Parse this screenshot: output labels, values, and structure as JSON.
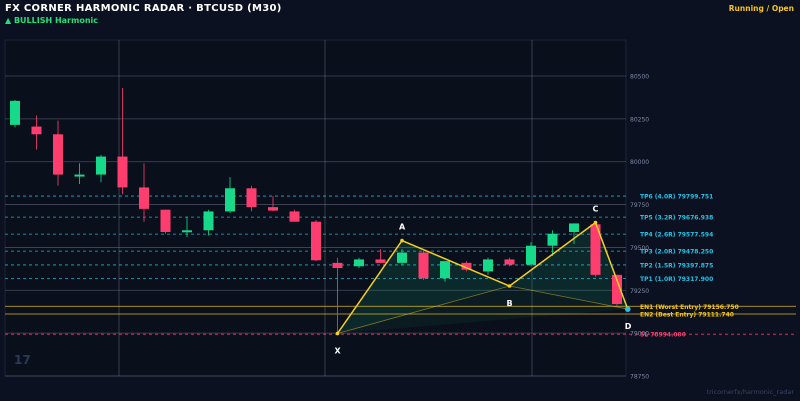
{
  "header": {
    "title": "FX CORNER HARMONIC RADAR  ·  BTCUSD (M30)",
    "pattern_label": "▲ BULLISH  Harmonic",
    "status": "Running / Open"
  },
  "watermark": "17",
  "credit": "tricornerfx/harmonic_radar",
  "colors": {
    "background": "#0b1120",
    "bull_candle": "#16d98a",
    "bear_candle": "#ff3d6e",
    "pattern_line": "#f5d020",
    "tp_line": "#22c3e6",
    "entry_line": "#f5c518",
    "sl_line": "#ff3d6e",
    "grid": "#8a93a8"
  },
  "chart_data": {
    "type": "candlestick",
    "title": "",
    "xlabel": "",
    "ylabel": "",
    "ylim": [
      78750,
      80700
    ],
    "y_ticks": [
      78750,
      79000,
      79250,
      79500,
      79750,
      80000,
      80250,
      80500
    ],
    "grid": true,
    "candles": [
      {
        "o": 80215,
        "h": 80360,
        "l": 80200,
        "c": 80355
      },
      {
        "o": 80205,
        "h": 80270,
        "l": 80070,
        "c": 80160
      },
      {
        "o": 80160,
        "h": 80240,
        "l": 79860,
        "c": 79925
      },
      {
        "o": 79925,
        "h": 79990,
        "l": 79870,
        "c": 79925
      },
      {
        "o": 79925,
        "h": 80040,
        "l": 79880,
        "c": 80030
      },
      {
        "o": 80030,
        "h": 80430,
        "l": 79810,
        "c": 79850
      },
      {
        "o": 79850,
        "h": 79990,
        "l": 79650,
        "c": 79725
      },
      {
        "o": 79720,
        "h": 79720,
        "l": 79580,
        "c": 79590
      },
      {
        "o": 79590,
        "h": 79680,
        "l": 79560,
        "c": 79600
      },
      {
        "o": 79600,
        "h": 79720,
        "l": 79570,
        "c": 79710
      },
      {
        "o": 79710,
        "h": 79910,
        "l": 79700,
        "c": 79845
      },
      {
        "o": 79845,
        "h": 79860,
        "l": 79710,
        "c": 79735
      },
      {
        "o": 79735,
        "h": 79800,
        "l": 79710,
        "c": 79715
      },
      {
        "o": 79710,
        "h": 79720,
        "l": 79650,
        "c": 79650
      },
      {
        "o": 79650,
        "h": 79660,
        "l": 79420,
        "c": 79425
      },
      {
        "o": 79410,
        "h": 79440,
        "l": 79000,
        "c": 79380
      },
      {
        "o": 79390,
        "h": 79440,
        "l": 79380,
        "c": 79430
      },
      {
        "o": 79430,
        "h": 79490,
        "l": 79410,
        "c": 79410
      },
      {
        "o": 79410,
        "h": 79490,
        "l": 79400,
        "c": 79470
      },
      {
        "o": 79470,
        "h": 79480,
        "l": 79310,
        "c": 79320
      },
      {
        "o": 79320,
        "h": 79420,
        "l": 79300,
        "c": 79420
      },
      {
        "o": 79410,
        "h": 79420,
        "l": 79360,
        "c": 79370
      },
      {
        "o": 79360,
        "h": 79440,
        "l": 79340,
        "c": 79430
      },
      {
        "o": 79430,
        "h": 79440,
        "l": 79390,
        "c": 79400
      },
      {
        "o": 79400,
        "h": 79530,
        "l": 79390,
        "c": 79510
      },
      {
        "o": 79510,
        "h": 79600,
        "l": 79450,
        "c": 79580
      },
      {
        "o": 79590,
        "h": 79640,
        "l": 79520,
        "c": 79640
      },
      {
        "o": 79635,
        "h": 79640,
        "l": 79330,
        "c": 79340
      },
      {
        "o": 79340,
        "h": 79340,
        "l": 79150,
        "c": 79170
      }
    ],
    "pattern_points": [
      {
        "label": "X",
        "candle": 15,
        "price": 78998
      },
      {
        "label": "A",
        "candle": 18,
        "price": 79540
      },
      {
        "label": "B",
        "candle": 23,
        "price": 79275
      },
      {
        "label": "C",
        "candle": 27,
        "price": 79645
      },
      {
        "label": "D",
        "candle": 28.5,
        "price": 79140
      }
    ],
    "levels": [
      {
        "label": "TP6 (4.0R)  79799.751",
        "price": 79799.751,
        "kind": "tp"
      },
      {
        "label": "TP5 (3.2R)  79676.938",
        "price": 79676.938,
        "kind": "tp"
      },
      {
        "label": "TP4 (2.6R)  79577.594",
        "price": 79577.594,
        "kind": "tp"
      },
      {
        "label": "TP3 (2.0R)  79478.250",
        "price": 79478.25,
        "kind": "tp"
      },
      {
        "label": "TP2 (1.5R)  79397.875",
        "price": 79397.875,
        "kind": "tp"
      },
      {
        "label": "TP1 (1.0R)  79317.900",
        "price": 79317.9,
        "kind": "tp"
      },
      {
        "label": "EN1 (Worst Entry)  79156.750",
        "price": 79156.75,
        "kind": "entry"
      },
      {
        "label": "EN2 (Best Entry)  79111.740",
        "price": 79111.74,
        "kind": "entry"
      },
      {
        "label": "SL  78994.000",
        "price": 78994.0,
        "kind": "sl"
      }
    ]
  }
}
